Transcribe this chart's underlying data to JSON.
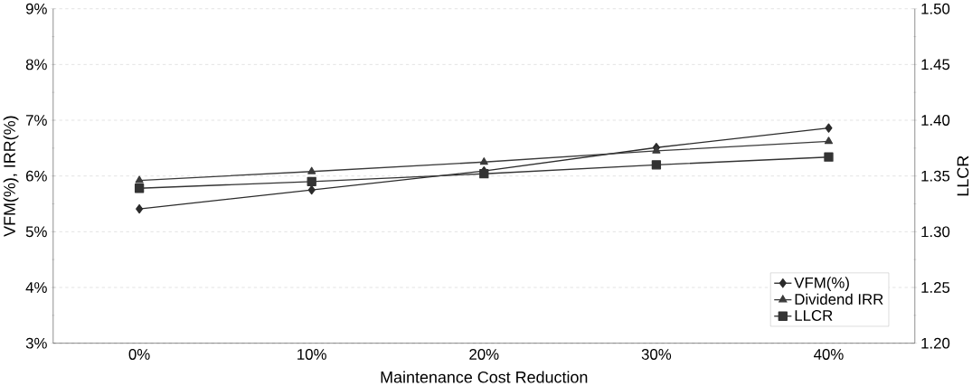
{
  "chart_data": {
    "type": "line",
    "xlabel": "Maintenance Cost Reduction",
    "ylabel": "VFM(%), IRR(%)",
    "y2label": "LLCR",
    "categories": [
      "0%",
      "10%",
      "20%",
      "30%",
      "40%"
    ],
    "series": [
      {
        "name": "VFM(%)",
        "color": "#2b2b2b",
        "marker": "diamond",
        "values": [
          5.41,
          5.75,
          6.09,
          6.51,
          6.86
        ]
      },
      {
        "name": "Dividend IRR",
        "color": "#3a3a3a",
        "marker": "triangle",
        "values": [
          5.92,
          6.08,
          6.25,
          6.45,
          6.62
        ]
      },
      {
        "name": "LLCR",
        "color": "#333333",
        "marker": "square",
        "axis": "y2",
        "values": [
          1.339,
          1.345,
          1.352,
          1.36,
          1.367
        ]
      }
    ],
    "ylim": [
      3,
      9
    ],
    "yticks": [
      {
        "value": 3,
        "label": "3%"
      },
      {
        "value": 4,
        "label": "4%"
      },
      {
        "value": 5,
        "label": "5%"
      },
      {
        "value": 6,
        "label": "6%"
      },
      {
        "value": 7,
        "label": "7%"
      },
      {
        "value": 8,
        "label": "8%"
      },
      {
        "value": 9,
        "label": "9%"
      }
    ],
    "y2lim": [
      1.2,
      1.5
    ],
    "y2ticks": [
      {
        "value": 1.2,
        "label": "1.20"
      },
      {
        "value": 1.25,
        "label": "1.25"
      },
      {
        "value": 1.3,
        "label": "1.30"
      },
      {
        "value": 1.35,
        "label": "1.35"
      },
      {
        "value": 1.4,
        "label": "1.40"
      },
      {
        "value": 1.45,
        "label": "1.45"
      },
      {
        "value": 1.5,
        "label": "1.50"
      }
    ],
    "grid": "y",
    "legend": "bottom right"
  }
}
